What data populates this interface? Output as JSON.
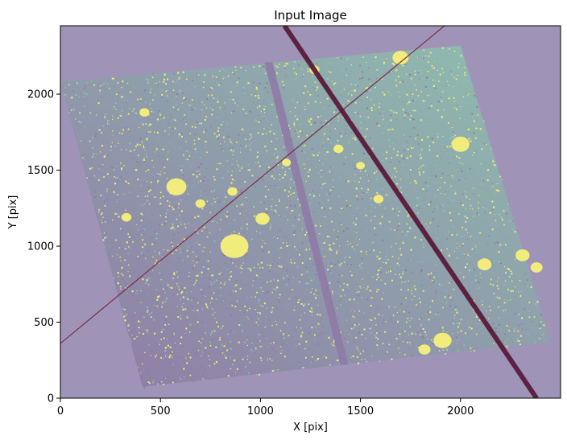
{
  "chart_data": {
    "type": "heatmap",
    "title": "Input Image",
    "xlabel": "X [pix]",
    "ylabel": "Y [pix]",
    "xlim": [
      0,
      2500
    ],
    "ylim": [
      0,
      2450
    ],
    "grid": false,
    "x_ticks": [
      {
        "value": 0,
        "label": "0"
      },
      {
        "value": 500,
        "label": "500"
      },
      {
        "value": 1000,
        "label": "1000"
      },
      {
        "value": 1500,
        "label": "1500"
      },
      {
        "value": 2000,
        "label": "2000"
      }
    ],
    "y_ticks": [
      {
        "value": 0,
        "label": "0"
      },
      {
        "value": 500,
        "label": "500"
      },
      {
        "value": 1000,
        "label": "1000"
      },
      {
        "value": 1500,
        "label": "1500"
      },
      {
        "value": 2000,
        "label": "2000"
      }
    ],
    "image_footprint": [
      [
        0,
        2080
      ],
      [
        2000,
        2320
      ],
      [
        2450,
        370
      ],
      [
        410,
        75
      ]
    ],
    "chip_gaps": [
      {
        "points": [
          [
            1020,
            2210
          ],
          [
            1060,
            2210
          ],
          [
            1440,
            220
          ],
          [
            1400,
            220
          ]
        ]
      }
    ],
    "overlay_lines": [
      {
        "from": [
          0,
          360
        ],
        "to": [
          1920,
          2450
        ],
        "color": "#7a1f3d"
      },
      {
        "from": [
          1120,
          2450
        ],
        "to": [
          2380,
          0
        ],
        "color": "#5a1a3a"
      }
    ],
    "bright_sources": [
      {
        "x": 870,
        "y": 1000,
        "r": 70
      },
      {
        "x": 580,
        "y": 1390,
        "r": 50
      },
      {
        "x": 2000,
        "y": 1670,
        "r": 45
      },
      {
        "x": 2310,
        "y": 940,
        "r": 35
      },
      {
        "x": 2120,
        "y": 880,
        "r": 35
      },
      {
        "x": 1910,
        "y": 380,
        "r": 45
      },
      {
        "x": 1820,
        "y": 320,
        "r": 30
      },
      {
        "x": 1700,
        "y": 2240,
        "r": 40
      },
      {
        "x": 1010,
        "y": 1180,
        "r": 35
      },
      {
        "x": 330,
        "y": 1190,
        "r": 25
      },
      {
        "x": 700,
        "y": 1280,
        "r": 25
      },
      {
        "x": 860,
        "y": 1360,
        "r": 25
      },
      {
        "x": 1390,
        "y": 1640,
        "r": 25
      },
      {
        "x": 1590,
        "y": 1310,
        "r": 25
      },
      {
        "x": 1130,
        "y": 1550,
        "r": 22
      },
      {
        "x": 1500,
        "y": 1530,
        "r": 22
      },
      {
        "x": 420,
        "y": 1880,
        "r": 25
      },
      {
        "x": 1270,
        "y": 2160,
        "r": 25
      },
      {
        "x": 2380,
        "y": 860,
        "r": 30
      }
    ],
    "colors": {
      "background": "#9f94b8",
      "image_low": "#8f7aa6",
      "image_high": "#8fbfb0",
      "noise": "#eaeb78",
      "sources": "#f2ec7c"
    }
  }
}
